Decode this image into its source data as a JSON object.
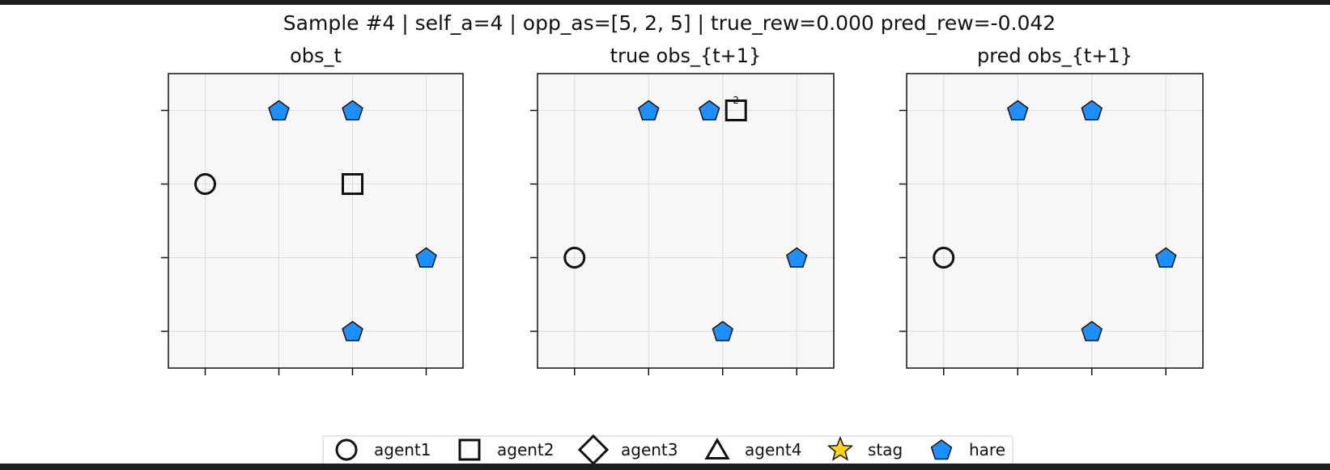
{
  "figure": {
    "suptitle": "Sample #4 | self_a=4 | opp_as=[5, 2, 5] | true_rew=0.000  pred_rew=-0.042"
  },
  "colors": {
    "panel_bg": "#f7f7f7",
    "grid": "#dddddd",
    "hare": "#1e8fff",
    "stag": "#ffd21e",
    "edge": "#111111",
    "frame": "#1e1e1e"
  },
  "legend": {
    "placement": "bottom-center",
    "items": [
      {
        "label": "agent1",
        "marker": "circle"
      },
      {
        "label": "agent2",
        "marker": "square"
      },
      {
        "label": "agent3",
        "marker": "diamond"
      },
      {
        "label": "agent4",
        "marker": "triangle"
      },
      {
        "label": "stag",
        "marker": "star"
      },
      {
        "label": "hare",
        "marker": "pentagon"
      }
    ]
  },
  "chart_data": [
    {
      "type": "scatter",
      "title": "obs_t",
      "xlim": [
        -0.5,
        3.5
      ],
      "ylim": [
        3.5,
        -0.5
      ],
      "grid": true,
      "tick_labels_visible": false,
      "entities": [
        {
          "kind": "hare",
          "x": 1,
          "y": 0
        },
        {
          "kind": "hare",
          "x": 2,
          "y": 0
        },
        {
          "kind": "agent1",
          "x": 0,
          "y": 1
        },
        {
          "kind": "agent2",
          "x": 2,
          "y": 1
        },
        {
          "kind": "hare",
          "x": 3,
          "y": 2
        },
        {
          "kind": "hare",
          "x": 2,
          "y": 3
        }
      ]
    },
    {
      "type": "scatter",
      "title": "true obs_{t+1}",
      "xlim": [
        -0.5,
        3.5
      ],
      "ylim": [
        3.5,
        -0.5
      ],
      "grid": true,
      "tick_labels_visible": false,
      "entities": [
        {
          "kind": "hare",
          "x": 1,
          "y": 0
        },
        {
          "kind": "hare",
          "x": 1.82,
          "y": 0
        },
        {
          "kind": "agent2",
          "x": 2.18,
          "y": 0
        },
        {
          "kind": "count",
          "x": 2.18,
          "y": -0.14,
          "text": "2"
        },
        {
          "kind": "agent1",
          "x": 0,
          "y": 2
        },
        {
          "kind": "hare",
          "x": 3,
          "y": 2
        },
        {
          "kind": "hare",
          "x": 2,
          "y": 3
        }
      ]
    },
    {
      "type": "scatter",
      "title": "pred obs_{t+1}",
      "xlim": [
        -0.5,
        3.5
      ],
      "ylim": [
        3.5,
        -0.5
      ],
      "grid": true,
      "tick_labels_visible": false,
      "entities": [
        {
          "kind": "hare",
          "x": 1,
          "y": 0
        },
        {
          "kind": "hare",
          "x": 2,
          "y": 0
        },
        {
          "kind": "agent1",
          "x": 0,
          "y": 2
        },
        {
          "kind": "hare",
          "x": 3,
          "y": 2
        },
        {
          "kind": "hare",
          "x": 2,
          "y": 3
        }
      ]
    }
  ]
}
